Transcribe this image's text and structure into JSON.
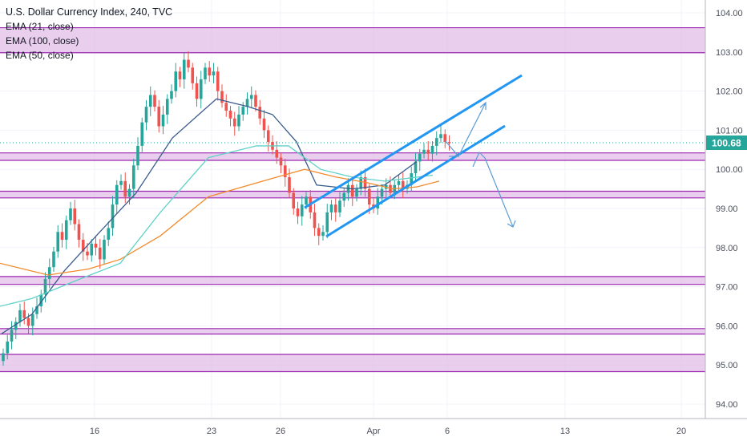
{
  "header": {
    "title": "U.S. Dollar Currency Index, 240, TVC",
    "indicators": [
      "EMA (21, close)",
      "EMA (100, close)",
      "EMA (50, close)"
    ]
  },
  "colors": {
    "up": "#26a69a",
    "down": "#ef5350",
    "zone_fill": "#e1bee7",
    "zone_border": "#9c27b0",
    "channel": "#2196f3",
    "arrow": "#5b9bd5",
    "ema21": "#3b5b8c",
    "ema50": "#5fd1c8",
    "ema100": "#f28b2e",
    "price_line": "#26a69a",
    "grid": "#f0f3fa"
  },
  "price_label": "100.68",
  "chart_data": {
    "type": "candlestick",
    "title": "U.S. Dollar Currency Index, 240, TVC",
    "interval": "240",
    "ylim": [
      93.6,
      104.3
    ],
    "y_ticks": [
      "104.00",
      "103.00",
      "102.00",
      "101.00",
      "100.00",
      "99.00",
      "98.00",
      "97.00",
      "96.00",
      "95.00",
      "94.00"
    ],
    "x_ticks": [
      "16",
      "23",
      "26",
      "Apr",
      "6",
      "13",
      "20"
    ],
    "last_price": 100.68,
    "grid": true,
    "series_close": [
      95.3,
      95.6,
      95.9,
      96.1,
      96.4,
      96.2,
      96.0,
      96.3,
      96.5,
      96.8,
      97.2,
      97.5,
      97.9,
      98.4,
      98.2,
      98.7,
      99.0,
      98.6,
      98.2,
      97.9,
      97.8,
      98.1,
      98.0,
      97.7,
      98.2,
      98.5,
      99.1,
      99.6,
      99.7,
      99.3,
      99.5,
      100.1,
      100.6,
      101.2,
      101.6,
      101.9,
      101.6,
      101.1,
      101.4,
      101.8,
      102.0,
      102.5,
      102.3,
      102.8,
      102.6,
      102.2,
      101.8,
      102.3,
      102.6,
      102.4,
      102.5,
      102.0,
      101.7,
      101.5,
      101.3,
      101.1,
      101.4,
      101.6,
      101.8,
      101.9,
      101.6,
      101.3,
      101.0,
      100.7,
      100.5,
      100.3,
      100.1,
      99.8,
      99.4,
      99.0,
      98.8,
      99.1,
      99.3,
      98.9,
      98.5,
      98.3,
      98.4,
      98.9,
      99.1,
      98.9,
      99.2,
      99.4,
      99.6,
      99.3,
      99.5,
      99.8,
      99.5,
      99.1,
      99.0,
      99.3,
      99.5,
      99.6,
      99.4,
      99.6,
      99.7,
      99.5,
      99.6,
      99.9,
      100.2,
      100.4,
      100.5,
      100.4,
      100.6,
      100.8,
      100.9,
      100.7,
      100.68
    ],
    "resistance_support_zones": [
      [
        102.98,
        103.62
      ],
      [
        100.23,
        100.42
      ],
      [
        99.27,
        99.44
      ],
      [
        97.06,
        97.26
      ],
      [
        95.79,
        95.93
      ],
      [
        94.83,
        95.27
      ]
    ],
    "series": [
      {
        "name": "EMA (21, close)",
        "values": [
          95.8,
          96.3,
          97.4,
          98.3,
          99.4,
          100.8,
          101.8,
          101.6,
          101.4,
          100.7,
          99.6,
          99.5,
          99.6,
          100.2
        ]
      },
      {
        "name": "EMA (100, close)",
        "values": [
          97.6,
          97.3,
          97.45,
          97.7,
          98.3,
          99.3,
          99.8,
          100.0,
          99.8,
          99.65,
          99.5,
          99.55,
          99.7
        ]
      },
      {
        "name": "EMA (50, close)",
        "values": [
          96.5,
          96.7,
          97.2,
          97.6,
          98.9,
          100.3,
          100.6,
          100.6,
          100.0,
          99.8,
          99.7,
          99.85
        ]
      }
    ],
    "channel": {
      "upper": [
        [
          99.0,
          102.35
        ]
      ],
      "lower": [
        [
          98.2,
          101.05
        ]
      ]
    }
  }
}
